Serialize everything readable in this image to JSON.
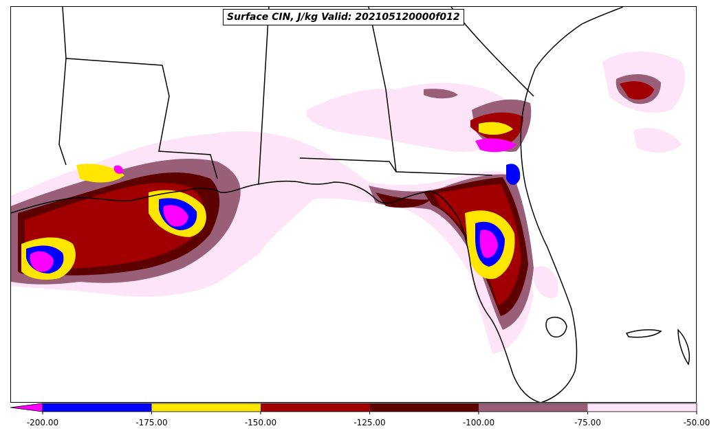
{
  "title": "Surface CIN, J/kg Valid: 202105120000f012",
  "legend": {
    "ticks": [
      "-200.00",
      "-175.00",
      "-150.00",
      "-125.00",
      "-100.00",
      "-75.00",
      "-50.00"
    ],
    "bins": [
      {
        "from": -200,
        "to": -175,
        "color": "#0000ff"
      },
      {
        "from": -175,
        "to": -150,
        "color": "#ffe600"
      },
      {
        "from": -150,
        "to": -125,
        "color": "#a00000"
      },
      {
        "from": -125,
        "to": -100,
        "color": "#5c0000"
      },
      {
        "from": -100,
        "to": -75,
        "color": "#9a5f78"
      },
      {
        "from": -75,
        "to": -50,
        "color": "#fde4f8"
      }
    ],
    "under_color": "#ff00ff",
    "extend": "min"
  },
  "map": {
    "region": "US Gulf Coast and Florida",
    "land_color": "#ffffff",
    "outline_color": "#000000"
  }
}
